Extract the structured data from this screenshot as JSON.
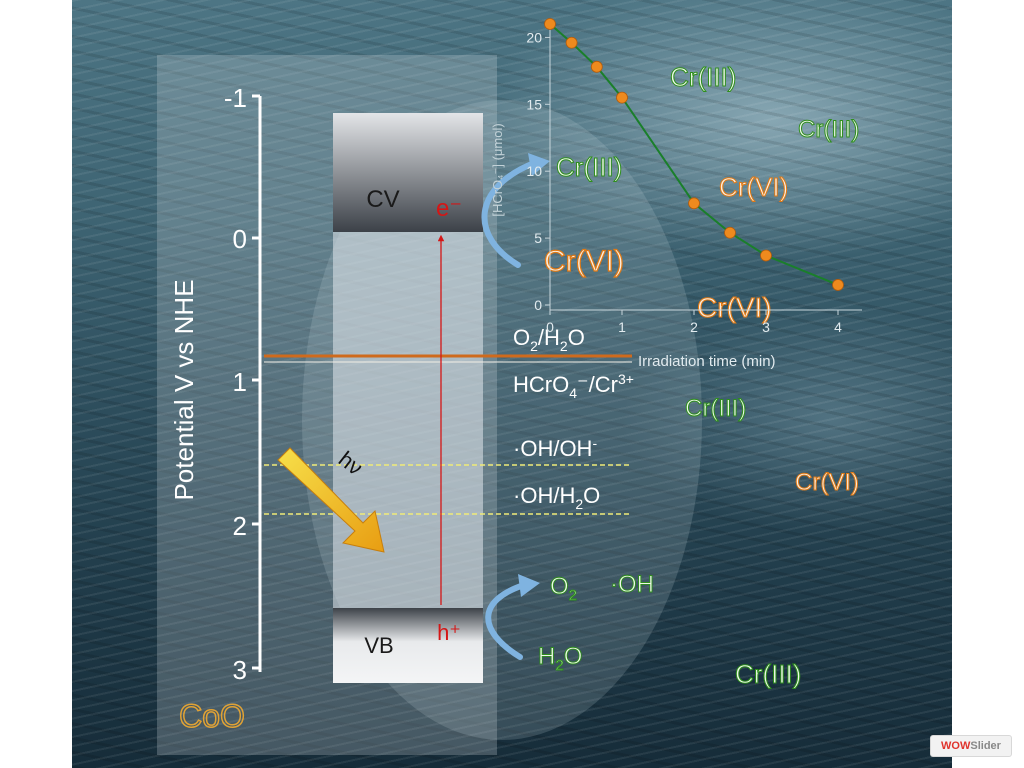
{
  "slide": {
    "axis_label": "Potential V vs NHE",
    "axis_ticks": [
      "-1",
      "0",
      "1",
      "2",
      "3"
    ],
    "material": "CoO",
    "cb_label": "CV",
    "vb_label": "VB",
    "electron": "e⁻",
    "hole": "h⁺",
    "photon": "hν",
    "cb_reaction": {
      "product": "Cr(III)",
      "reactant": "Cr(VI)"
    },
    "vb_reaction": {
      "product_o2": "O",
      "product_o2_sub": "2",
      "product_oh": "·OH",
      "reactant": "H",
      "reactant_sub": "2",
      "reactant_end": "O"
    },
    "levels": {
      "o2_h2o": {
        "a": "O",
        "a_sub": "2",
        "b": "/H",
        "b_sub": "2",
        "c": "O"
      },
      "hcro4": {
        "a": "HCrO",
        "a_sub": "4",
        "b": "⁻/Cr",
        "b_sup": "3+"
      },
      "oh_ohminus": {
        "a": "·OH/OH",
        "a_sup": "-"
      },
      "oh_h2o": {
        "a": "·OH/H",
        "a_sub": "2",
        "b": "O"
      }
    },
    "species_labels": [
      "Cr(III)",
      "Cr(III)",
      "Cr(VI)",
      "Cr(VI)",
      "Cr(III)",
      "Cr(VI)",
      "Cr(III)"
    ],
    "colors": {
      "green_label": "#2f8f1d",
      "orange_label": "#e07a16",
      "electron": "#d41616",
      "level_orange": "#cf6a1c",
      "level_yellow": "#f0eb78",
      "arrow_blue": "#7fb3e0"
    }
  },
  "inset_chart": {
    "type": "line",
    "xlabel": "Irradiation time (min)",
    "ylabel": "[HCrO₄⁻] (μmol)",
    "x_ticks": [
      "0",
      "1",
      "2",
      "3",
      "4"
    ],
    "y_ticks": [
      "0",
      "5",
      "10",
      "15",
      "20"
    ]
  },
  "chart_data": {
    "type": "line",
    "xlabel": "Irradiation time (min)",
    "ylabel": "[HCrO₄⁻] (μmol)",
    "xlim": [
      0,
      4
    ],
    "ylim": [
      0,
      21
    ],
    "series": [
      {
        "x": [
          0,
          0.3,
          0.65,
          1.0,
          2.0,
          2.5,
          3.0,
          4.0
        ],
        "y": [
          21.0,
          19.6,
          17.8,
          15.5,
          7.6,
          5.4,
          3.7,
          1.5
        ]
      }
    ],
    "grid": false,
    "colors": {
      "line": "#1a7f2a",
      "marker": "#ee8a1e",
      "axis": "#c8d6dc"
    }
  },
  "watermark": {
    "part1": "WOW",
    "part2": "Slider"
  }
}
